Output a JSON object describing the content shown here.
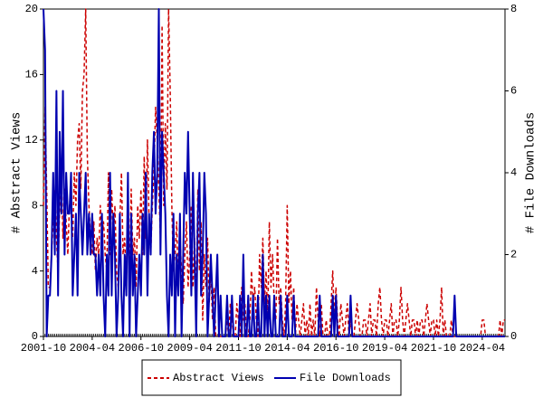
{
  "chart_data": {
    "type": "line",
    "x": [
      "2001-10",
      "2001-11",
      "2001-12",
      "2002-01",
      "2002-02",
      "2002-03",
      "2002-04",
      "2002-05",
      "2002-06",
      "2002-07",
      "2002-08",
      "2002-09",
      "2002-10",
      "2002-11",
      "2002-12",
      "2003-01",
      "2003-02",
      "2003-03",
      "2003-04",
      "2003-05",
      "2003-06",
      "2003-07",
      "2003-08",
      "2003-09",
      "2003-10",
      "2003-11",
      "2003-12",
      "2004-01",
      "2004-02",
      "2004-03",
      "2004-04",
      "2004-05",
      "2004-06",
      "2004-07",
      "2004-08",
      "2004-09",
      "2004-10",
      "2004-11",
      "2004-12",
      "2005-01",
      "2005-02",
      "2005-03",
      "2005-04",
      "2005-05",
      "2005-06",
      "2005-07",
      "2005-08",
      "2005-09",
      "2005-10",
      "2005-11",
      "2005-12",
      "2006-01",
      "2006-02",
      "2006-03",
      "2006-04",
      "2006-05",
      "2006-06",
      "2006-07",
      "2006-08",
      "2006-09",
      "2006-10",
      "2006-11",
      "2006-12",
      "2007-01",
      "2007-02",
      "2007-03",
      "2007-04",
      "2007-05",
      "2007-06",
      "2007-07",
      "2007-08",
      "2007-09",
      "2007-10",
      "2007-11",
      "2007-12",
      "2008-01",
      "2008-02",
      "2008-03",
      "2008-04",
      "2008-05",
      "2008-06",
      "2008-07",
      "2008-08",
      "2008-09",
      "2008-10",
      "2008-11",
      "2008-12",
      "2009-01",
      "2009-02",
      "2009-03",
      "2009-04",
      "2009-05",
      "2009-06",
      "2009-07",
      "2009-08",
      "2009-09",
      "2009-10",
      "2009-11",
      "2009-12",
      "2010-01",
      "2010-02",
      "2010-03",
      "2010-04",
      "2010-05",
      "2010-06",
      "2010-07",
      "2010-08",
      "2010-09",
      "2010-10",
      "2010-11",
      "2010-12",
      "2011-01",
      "2011-02",
      "2011-03",
      "2011-04",
      "2011-05",
      "2011-06",
      "2011-07",
      "2011-08",
      "2011-09",
      "2011-10",
      "2011-11",
      "2011-12",
      "2012-01",
      "2012-02",
      "2012-03",
      "2012-04",
      "2012-05",
      "2012-06",
      "2012-07",
      "2012-08",
      "2012-09",
      "2012-10",
      "2012-11",
      "2012-12",
      "2013-01",
      "2013-02",
      "2013-03",
      "2013-04",
      "2013-05",
      "2013-06",
      "2013-07",
      "2013-08",
      "2013-09",
      "2013-10",
      "2013-11",
      "2013-12",
      "2014-01",
      "2014-02",
      "2014-03",
      "2014-04",
      "2014-05",
      "2014-06",
      "2014-07",
      "2014-08",
      "2014-09",
      "2014-10",
      "2014-11",
      "2014-12",
      "2015-01",
      "2015-02",
      "2015-03",
      "2015-04",
      "2015-05",
      "2015-06",
      "2015-07",
      "2015-08",
      "2015-09",
      "2015-10",
      "2015-11",
      "2015-12",
      "2016-01",
      "2016-02",
      "2016-03",
      "2016-04",
      "2016-05",
      "2016-06",
      "2016-07",
      "2016-08",
      "2016-09",
      "2016-10",
      "2016-11",
      "2016-12",
      "2017-01",
      "2017-02",
      "2017-03",
      "2017-04",
      "2017-05",
      "2017-06",
      "2017-07",
      "2017-08",
      "2017-09",
      "2017-10",
      "2017-11",
      "2017-12",
      "2018-01",
      "2018-02",
      "2018-03",
      "2018-04",
      "2018-05",
      "2018-06",
      "2018-07",
      "2018-08",
      "2018-09",
      "2018-10",
      "2018-11",
      "2018-12",
      "2019-01",
      "2019-02",
      "2019-03",
      "2019-04",
      "2019-05",
      "2019-06",
      "2019-07",
      "2019-08",
      "2019-09",
      "2019-10",
      "2019-11",
      "2019-12",
      "2020-01",
      "2020-02",
      "2020-03",
      "2020-04",
      "2020-05",
      "2020-06",
      "2020-07",
      "2020-08",
      "2020-09",
      "2020-10",
      "2020-11",
      "2020-12",
      "2021-01",
      "2021-02",
      "2021-03",
      "2021-04",
      "2021-05",
      "2021-06",
      "2021-07",
      "2021-08",
      "2021-09",
      "2021-10",
      "2021-11",
      "2021-12",
      "2022-01",
      "2022-02",
      "2022-03",
      "2022-04",
      "2022-05",
      "2022-06",
      "2022-07",
      "2022-08",
      "2022-09",
      "2022-10",
      "2022-11",
      "2022-12",
      "2023-01",
      "2023-02",
      "2023-03",
      "2023-04",
      "2023-05",
      "2023-06",
      "2023-07",
      "2023-08",
      "2023-09",
      "2023-10",
      "2023-11",
      "2023-12",
      "2024-01",
      "2024-02",
      "2024-03",
      "2024-04",
      "2024-05",
      "2024-06",
      "2024-07",
      "2024-08",
      "2024-09",
      "2024-10",
      "2024-11",
      "2024-12",
      "2025-01",
      "2025-02",
      "2025-03",
      "2025-04",
      "2025-05",
      "2025-06"
    ],
    "xticks": [
      "2001-10",
      "2004-04",
      "2006-10",
      "2009-04",
      "2011-10",
      "2014-04",
      "2016-10",
      "2019-04",
      "2021-10",
      "2024-04"
    ],
    "ylabel": "# Abstract Views",
    "y2label": "# File Downloads",
    "ylim": [
      0,
      20
    ],
    "yticks": [
      0,
      4,
      8,
      12,
      16,
      20
    ],
    "y2lim": [
      0,
      8
    ],
    "y2ticks": [
      0,
      2,
      4,
      6,
      8
    ],
    "legend": "bottom",
    "series": [
      {
        "name": "Abstract Views",
        "color": "#cc0000",
        "dashed": true,
        "values": [
          8,
          14,
          9,
          3,
          3,
          5,
          7,
          9,
          6,
          4,
          8,
          10,
          6,
          9,
          7,
          5,
          8,
          9,
          6,
          10,
          8,
          12,
          13,
          9,
          15,
          16,
          20,
          11,
          8,
          6,
          5,
          7,
          4,
          6,
          5,
          8,
          6,
          7,
          5,
          4,
          10,
          5,
          9,
          6,
          8,
          4,
          3,
          7,
          10,
          5,
          6,
          3,
          8,
          4,
          9,
          5,
          6,
          3,
          8,
          6,
          9,
          5,
          11,
          6,
          12,
          7,
          5,
          8,
          10,
          14,
          12,
          9,
          6,
          19,
          8,
          13,
          9,
          20,
          15,
          8,
          4,
          5,
          7,
          3,
          6,
          4,
          2,
          5,
          7,
          3,
          5,
          8,
          3,
          6,
          2,
          9,
          4,
          7,
          1,
          5,
          3,
          6,
          2,
          4,
          1,
          3,
          0,
          0,
          0,
          0,
          0,
          0,
          0,
          1,
          0,
          2,
          1,
          0,
          0,
          2,
          1,
          0,
          3,
          1,
          2,
          0,
          0,
          1,
          4,
          2,
          3,
          1,
          0,
          5,
          3,
          6,
          2,
          4,
          1,
          7,
          3,
          5,
          2,
          1,
          6,
          2,
          3,
          1,
          0,
          2,
          8,
          2,
          4,
          1,
          3,
          0,
          2,
          1,
          0,
          1,
          2,
          0,
          1,
          0,
          2,
          0,
          1,
          0,
          3,
          1,
          0,
          2,
          0,
          0,
          1,
          0,
          0,
          2,
          4,
          1,
          3,
          1,
          0,
          2,
          1,
          0,
          1,
          2,
          0,
          1,
          0,
          0,
          1,
          2,
          1,
          0,
          0,
          1,
          1,
          0,
          1,
          2,
          0,
          1,
          1,
          0,
          2,
          3,
          1,
          0,
          1,
          1,
          0,
          1,
          2,
          0,
          1,
          1,
          0,
          1,
          3,
          1,
          0,
          1,
          2,
          1,
          0,
          1,
          1,
          0,
          1,
          0,
          1,
          1,
          0,
          1,
          2,
          1,
          0,
          1,
          1,
          0,
          1,
          0,
          1,
          3,
          0,
          1,
          0,
          0,
          0,
          1,
          0,
          0,
          0,
          0,
          0,
          0,
          0,
          0,
          0,
          0,
          0,
          0,
          0,
          0,
          0,
          0,
          0,
          0,
          1,
          1,
          0,
          0,
          0,
          0,
          0,
          0,
          0,
          0,
          0,
          1,
          0,
          1,
          1
        ]
      },
      {
        "name": "File Downloads",
        "color": "#0000b0",
        "dashed": false,
        "axis": "y2",
        "values": [
          8,
          7,
          0,
          1,
          1,
          2,
          4,
          2,
          6,
          1,
          5,
          3,
          6,
          2,
          4,
          3,
          3,
          4,
          1,
          2,
          3,
          1,
          4,
          3,
          2,
          3,
          4,
          2,
          3,
          2,
          3,
          2,
          2,
          1,
          2,
          1,
          3,
          1,
          0,
          2,
          1,
          4,
          1,
          3,
          2,
          0,
          1,
          3,
          1,
          0,
          2,
          1,
          4,
          0,
          3,
          1,
          2,
          0,
          1,
          2,
          1,
          3,
          2,
          4,
          1,
          3,
          2,
          4,
          5,
          3,
          4,
          8,
          2,
          5,
          4,
          3,
          1,
          0,
          2,
          1,
          3,
          0,
          2,
          1,
          3,
          0,
          2,
          4,
          3,
          5,
          3,
          1,
          4,
          2,
          0,
          3,
          4,
          1,
          2,
          4,
          3,
          0,
          1,
          2,
          1,
          0,
          1,
          2,
          0,
          1,
          0,
          0,
          0,
          1,
          0,
          0,
          1,
          0,
          0,
          0,
          0,
          1,
          0,
          2,
          0,
          0,
          1,
          0,
          0,
          1,
          0,
          0,
          1,
          0,
          0,
          2,
          0,
          1,
          0,
          1,
          0,
          0,
          1,
          0,
          0,
          0,
          1,
          0,
          0,
          0,
          1,
          0,
          0,
          0,
          1,
          0,
          0,
          0,
          0,
          0,
          0,
          0,
          0,
          0,
          0,
          0,
          0,
          0,
          0,
          0,
          1,
          0,
          0,
          0,
          0,
          0,
          0,
          0,
          1,
          0,
          1,
          0,
          0,
          0,
          0,
          0,
          0,
          0,
          0,
          1,
          0,
          0,
          0,
          0,
          0,
          0,
          0,
          0,
          0,
          0,
          0,
          0,
          0,
          0,
          0,
          0,
          0,
          0,
          0,
          0,
          0,
          0,
          0,
          0,
          0,
          0,
          0,
          0,
          0,
          0,
          0,
          0,
          0,
          0,
          0,
          0,
          0,
          0,
          0,
          0,
          0,
          0,
          0,
          0,
          0,
          0,
          0,
          0,
          0,
          0,
          0,
          0,
          0,
          0,
          0,
          0,
          0,
          0,
          0,
          0,
          0,
          0,
          0,
          1,
          0,
          0,
          0,
          0,
          0,
          0,
          0,
          0,
          0,
          0,
          0,
          0,
          0,
          0,
          0,
          0,
          0,
          0,
          0,
          0,
          0,
          0,
          0,
          0,
          0,
          0,
          0,
          0,
          0,
          0,
          0
        ]
      }
    ]
  }
}
